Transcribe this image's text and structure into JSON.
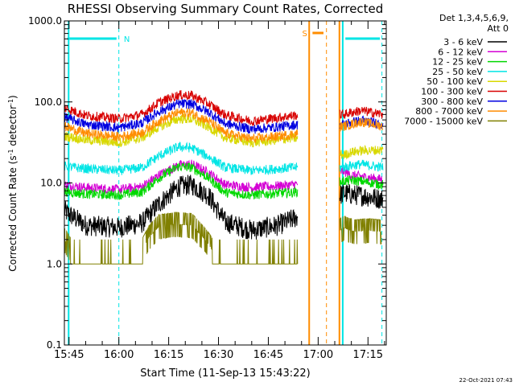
{
  "chart_data": {
    "type": "line",
    "title": "RHESSI Observing Summary Count Rates, Corrected",
    "xlabel": "Start Time (11-Sep-13 15:43:22)",
    "ylabel_main": "Corrected Count Rate (s",
    "ylabel_sup1": "-1",
    "ylabel_mid": " detector",
    "ylabel_sup2": "-1",
    "ylabel_end": ")",
    "yscale": "log",
    "ylim": [
      0.1,
      1000.0
    ],
    "y_ticks": [
      "0.1",
      "1.0",
      "10.0",
      "100.0",
      "1000.0"
    ],
    "x_range_minutes": [
      -1.4,
      95.5
    ],
    "x_ticks": [
      {
        "label": "15:45",
        "min": 0
      },
      {
        "label": "16:00",
        "min": 15
      },
      {
        "label": "16:15",
        "min": 30
      },
      {
        "label": "16:30",
        "min": 45
      },
      {
        "label": "16:45",
        "min": 60
      },
      {
        "label": "17:00",
        "min": 75
      },
      {
        "label": "17:15",
        "min": 90
      }
    ],
    "legend": {
      "header_line1": "Det 1,3,4,5,6,9,",
      "header_line2": "Att 0",
      "placement": "top-right outside"
    },
    "data_gap_minutes": [
      68.8,
      81.5
    ],
    "series": [
      {
        "name": "3 - 6 keV",
        "color": "#000000",
        "points": [
          [
            -1.4,
            4.5
          ],
          [
            5,
            3.0
          ],
          [
            15,
            2.8
          ],
          [
            22,
            3.2
          ],
          [
            27,
            5.5
          ],
          [
            33,
            9.0
          ],
          [
            37,
            9.5
          ],
          [
            42,
            7.0
          ],
          [
            47,
            3.3
          ],
          [
            55,
            2.6
          ],
          [
            63,
            3.0
          ],
          [
            67.5,
            3.6
          ],
          [
            82.7,
            7.5
          ],
          [
            85,
            7.2
          ],
          [
            88,
            7.0
          ],
          [
            94.5,
            6.3
          ]
        ]
      },
      {
        "name": "6 - 12 keV",
        "color": "#d400d4",
        "points": [
          [
            -1.4,
            9.5
          ],
          [
            5,
            8.8
          ],
          [
            15,
            8.3
          ],
          [
            22,
            9.0
          ],
          [
            27,
            12.5
          ],
          [
            33,
            16.5
          ],
          [
            37,
            17.0
          ],
          [
            42,
            13.5
          ],
          [
            47,
            9.5
          ],
          [
            55,
            8.8
          ],
          [
            63,
            9.2
          ],
          [
            67.5,
            9.5
          ],
          [
            82.7,
            14.0
          ],
          [
            85,
            12.5
          ],
          [
            88,
            12.0
          ],
          [
            94.5,
            11.0
          ]
        ]
      },
      {
        "name": "12 - 25 keV",
        "color": "#00d800",
        "points": [
          [
            -1.4,
            7.8
          ],
          [
            5,
            7.3
          ],
          [
            15,
            7.1
          ],
          [
            22,
            7.7
          ],
          [
            27,
            11.5
          ],
          [
            33,
            16.0
          ],
          [
            37,
            15.5
          ],
          [
            42,
            11.5
          ],
          [
            47,
            7.6
          ],
          [
            55,
            7.1
          ],
          [
            63,
            7.5
          ],
          [
            67.5,
            7.6
          ],
          [
            82.7,
            10.5
          ],
          [
            85,
            10.8
          ],
          [
            88,
            10.5
          ],
          [
            94.5,
            9.5
          ]
        ]
      },
      {
        "name": "25 - 50 keV",
        "color": "#00e5e5",
        "points": [
          [
            -1.4,
            16.0
          ],
          [
            5,
            15.0
          ],
          [
            15,
            14.2
          ],
          [
            22,
            15.5
          ],
          [
            27,
            21.5
          ],
          [
            33,
            28.0
          ],
          [
            37,
            27.0
          ],
          [
            42,
            21.0
          ],
          [
            47,
            15.5
          ],
          [
            55,
            14.2
          ],
          [
            63,
            15.0
          ],
          [
            67.5,
            15.5
          ],
          [
            82.7,
            15.5
          ],
          [
            85,
            16.5
          ],
          [
            88,
            17.0
          ],
          [
            94.5,
            15.5
          ]
        ]
      },
      {
        "name": "50 - 100 keV",
        "color": "#d8d800",
        "points": [
          [
            -1.4,
            38.0
          ],
          [
            5,
            34.0
          ],
          [
            15,
            31.5
          ],
          [
            22,
            36.0
          ],
          [
            27,
            49.0
          ],
          [
            33,
            62.0
          ],
          [
            37,
            61.0
          ],
          [
            42,
            49.0
          ],
          [
            47,
            36.0
          ],
          [
            55,
            31.5
          ],
          [
            63,
            34.0
          ],
          [
            67.5,
            36.0
          ],
          [
            82.7,
            22.0
          ],
          [
            85,
            24.0
          ],
          [
            88,
            25.0
          ],
          [
            94.5,
            25.5
          ]
        ]
      },
      {
        "name": "100 - 300 keV",
        "color": "#d80000",
        "points": [
          [
            -1.4,
            85.0
          ],
          [
            5,
            68.0
          ],
          [
            15,
            62.0
          ],
          [
            22,
            70.0
          ],
          [
            27,
            98.0
          ],
          [
            33,
            122.0
          ],
          [
            37,
            120.0
          ],
          [
            42,
            95.0
          ],
          [
            47,
            69.0
          ],
          [
            55,
            58.0
          ],
          [
            63,
            64.0
          ],
          [
            67.5,
            68.0
          ],
          [
            82.7,
            70.0
          ],
          [
            85,
            74.0
          ],
          [
            88,
            78.0
          ],
          [
            94.5,
            70.0
          ]
        ]
      },
      {
        "name": "300 - 800 keV",
        "color": "#0000e0",
        "points": [
          [
            -1.4,
            65.0
          ],
          [
            5,
            53.0
          ],
          [
            15,
            48.0
          ],
          [
            22,
            55.0
          ],
          [
            27,
            76.0
          ],
          [
            33,
            95.0
          ],
          [
            37,
            94.0
          ],
          [
            42,
            75.0
          ],
          [
            47,
            54.0
          ],
          [
            55,
            46.0
          ],
          [
            63,
            49.0
          ],
          [
            67.5,
            52.0
          ],
          [
            82.7,
            53.0
          ],
          [
            85,
            56.0
          ],
          [
            88,
            59.0
          ],
          [
            94.5,
            53.0
          ]
        ]
      },
      {
        "name": "800 - 7000 keV",
        "color": "#ff8c00",
        "points": [
          [
            -1.4,
            50.0
          ],
          [
            5,
            41.0
          ],
          [
            15,
            37.0
          ],
          [
            22,
            42.0
          ],
          [
            27,
            58.0
          ],
          [
            33,
            74.0
          ],
          [
            37,
            73.0
          ],
          [
            42,
            58.0
          ],
          [
            47,
            41.0
          ],
          [
            55,
            35.0
          ],
          [
            63,
            37.5
          ],
          [
            67.5,
            40.0
          ],
          [
            82.7,
            50.0
          ],
          [
            85,
            53.0
          ],
          [
            88,
            57.0
          ],
          [
            94.5,
            50.0
          ]
        ]
      },
      {
        "name": "7000 - 15000 keV",
        "color": "#808000",
        "points": [
          [
            -1.4,
            2.0
          ],
          [
            3,
            1.0
          ],
          [
            12,
            1.0
          ],
          [
            14,
            1.05
          ],
          [
            16,
            1.0
          ],
          [
            20,
            1.0
          ],
          [
            24,
            2.1
          ],
          [
            27,
            2.9
          ],
          [
            32,
            3.1
          ],
          [
            37,
            3.0
          ],
          [
            41,
            2.0
          ],
          [
            46,
            1.0
          ],
          [
            55,
            1.0
          ],
          [
            60,
            1.0
          ],
          [
            67.5,
            1.0
          ],
          [
            82.7,
            2.8
          ],
          [
            86,
            2.5
          ],
          [
            90,
            2.6
          ],
          [
            94,
            2.5
          ]
        ]
      }
    ],
    "annotations": [
      {
        "label": "N",
        "color": "#00e5e5"
      },
      {
        "label": "S",
        "color": "#ff8c00"
      }
    ],
    "footer_date": "22-Oct-2021 07:43"
  }
}
